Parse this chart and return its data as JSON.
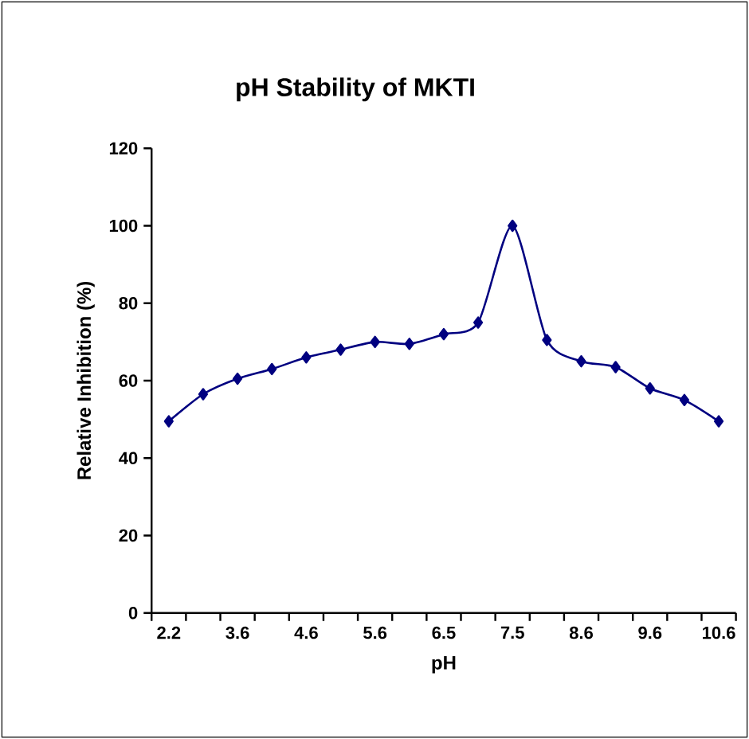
{
  "chart_data": {
    "type": "line",
    "title": "pH Stability of MKTI",
    "xlabel": "pH",
    "ylabel": "Relative Inhibition (%)",
    "categories": [
      "2.2",
      null,
      "3.6",
      null,
      "4.6",
      null,
      "5.6",
      null,
      "6.5",
      null,
      "7.5",
      null,
      "8.6",
      null,
      "9.6",
      null,
      "10.6"
    ],
    "series": [
      {
        "color": "#000080",
        "values": [
          49.5,
          56.5,
          60.5,
          63,
          66,
          68,
          70,
          69.5,
          72,
          75,
          100,
          70.5,
          65,
          63.5,
          58,
          55,
          49.5
        ]
      }
    ],
    "ylim": [
      0,
      120
    ],
    "yticks": [
      0,
      20,
      40,
      60,
      80,
      100,
      120
    ],
    "marker": "diamond",
    "line_style": "solid"
  }
}
